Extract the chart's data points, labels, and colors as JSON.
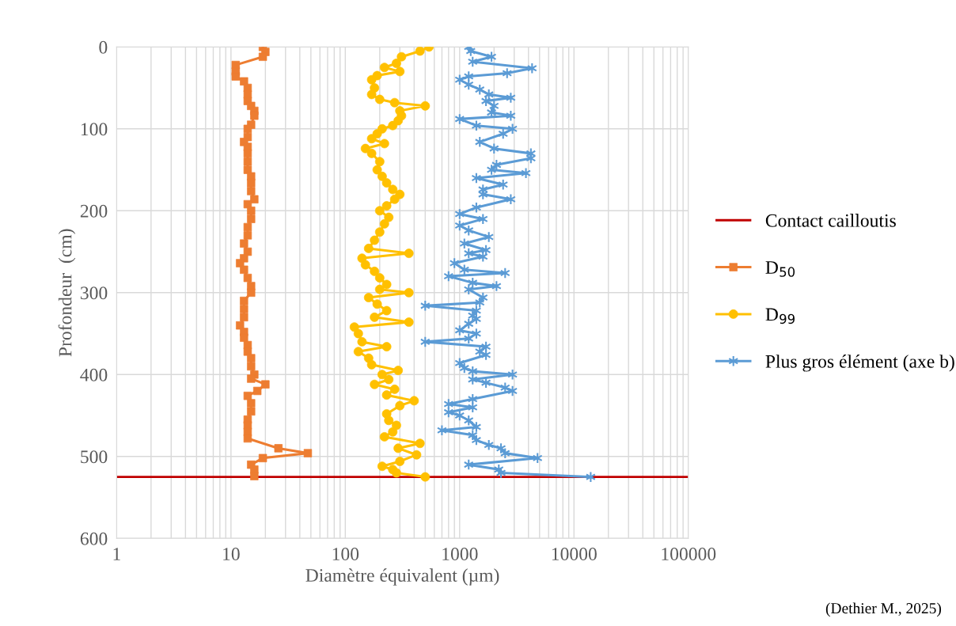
{
  "chart_data": {
    "type": "line",
    "xlabel": "Diamètre équivalent (µm)",
    "ylabel": "Profondeur  (cm)",
    "log": "x",
    "xlim": [
      1,
      100000
    ],
    "xticks": [
      1,
      10,
      100,
      1000,
      10000,
      100000
    ],
    "ylim": [
      600,
      0
    ],
    "yticks": [
      0,
      100,
      200,
      300,
      400,
      500,
      600
    ],
    "grid": true,
    "legend": "right",
    "ref_lines": [
      {
        "axis": "y",
        "value": 525,
        "label": "Contact cailloutis",
        "color": "#c00000"
      }
    ],
    "annotations": [
      "(Dethier M., 2025)"
    ],
    "series": [
      {
        "name": "D$_{50}$",
        "color": "#ed7d31",
        "marker": "square",
        "x": [
          19,
          20,
          19,
          11,
          11,
          11,
          13,
          14,
          14,
          14,
          15,
          16,
          16,
          15,
          14,
          14,
          13,
          14,
          14,
          14,
          14,
          15,
          15,
          15,
          16,
          14,
          15,
          15,
          14,
          14,
          13,
          14,
          13,
          12,
          13,
          14,
          15,
          15,
          13,
          13,
          13,
          12,
          13,
          13,
          14,
          14,
          15,
          15,
          16,
          15,
          20,
          17,
          14,
          15,
          15,
          14,
          14,
          14,
          14,
          26,
          47,
          19,
          15,
          16,
          16
        ],
        "values": [
          0,
          6,
          12,
          22,
          30,
          36,
          42,
          50,
          58,
          66,
          72,
          78,
          84,
          95,
          100,
          110,
          116,
          122,
          130,
          140,
          150,
          158,
          166,
          176,
          186,
          192,
          200,
          210,
          220,
          230,
          240,
          250,
          258,
          264,
          272,
          282,
          292,
          300,
          310,
          320,
          330,
          340,
          348,
          355,
          364,
          372,
          380,
          390,
          400,
          405,
          412,
          420,
          426,
          435,
          445,
          455,
          462,
          470,
          478,
          490,
          496,
          502,
          510,
          516,
          524
        ]
      },
      {
        "name": "D$_{99}$",
        "color": "#ffc000",
        "marker": "circle",
        "x": [
          540,
          450,
          310,
          280,
          220,
          300,
          190,
          170,
          180,
          170,
          200,
          270,
          500,
          300,
          310,
          290,
          260,
          210,
          190,
          170,
          220,
          150,
          170,
          200,
          190,
          210,
          230,
          260,
          300,
          270,
          230,
          200,
          240,
          220,
          200,
          180,
          160,
          360,
          140,
          150,
          180,
          200,
          230,
          200,
          360,
          160,
          190,
          230,
          180,
          360,
          120,
          130,
          140,
          230,
          130,
          160,
          170,
          290,
          210,
          240,
          180,
          270,
          230,
          400,
          300,
          230,
          240,
          280,
          260,
          220,
          450,
          290,
          420,
          300,
          210,
          260,
          280,
          500
        ],
        "values": [
          0,
          5,
          12,
          20,
          25,
          30,
          35,
          40,
          50,
          58,
          64,
          68,
          72,
          78,
          84,
          90,
          96,
          100,
          106,
          112,
          118,
          124,
          130,
          140,
          150,
          158,
          166,
          174,
          180,
          186,
          194,
          200,
          208,
          216,
          226,
          236,
          246,
          252,
          258,
          266,
          274,
          282,
          290,
          296,
          300,
          306,
          314,
          322,
          330,
          336,
          342,
          350,
          360,
          366,
          372,
          380,
          388,
          395,
          400,
          406,
          412,
          418,
          425,
          432,
          438,
          448,
          456,
          462,
          470,
          476,
          484,
          490,
          498,
          506,
          512,
          516,
          520,
          525
        ]
      },
      {
        "name": "Plus gros élément (axe b)",
        "color": "#5b9bd5",
        "marker": "cross",
        "x": [
          1200,
          1250,
          1900,
          1300,
          4300,
          2600,
          1200,
          1000,
          1200,
          1500,
          1800,
          2800,
          1700,
          2000,
          1900,
          2800,
          1000,
          1400,
          2900,
          2400,
          1500,
          2000,
          4200,
          4200,
          2100,
          1900,
          3800,
          1400,
          2400,
          1600,
          1600,
          2800,
          1400,
          1000,
          1600,
          1000,
          1200,
          1800,
          1100,
          1700,
          1200,
          1600,
          900,
          1100,
          2500,
          800,
          1300,
          2100,
          1200,
          1600,
          1500,
          500,
          1400,
          1300,
          1400,
          1200,
          1000,
          1400,
          1200,
          500,
          1700,
          1500,
          1700,
          1000,
          1100,
          1300,
          2900,
          1300,
          1700,
          2500,
          2900,
          1300,
          800,
          1300,
          800,
          1000,
          1200,
          1400,
          700,
          1300,
          1400,
          1800,
          2300,
          2500,
          4800,
          1200,
          2200,
          2300,
          14000
        ],
        "values": [
          0,
          5,
          12,
          18,
          26,
          32,
          36,
          40,
          46,
          52,
          58,
          62,
          66,
          72,
          80,
          84,
          88,
          96,
          100,
          106,
          116,
          124,
          130,
          136,
          144,
          150,
          154,
          160,
          168,
          174,
          180,
          186,
          196,
          204,
          210,
          218,
          224,
          232,
          240,
          248,
          252,
          256,
          264,
          272,
          276,
          280,
          288,
          292,
          296,
          306,
          312,
          316,
          322,
          328,
          332,
          338,
          346,
          350,
          356,
          360,
          366,
          372,
          376,
          386,
          392,
          396,
          400,
          406,
          410,
          416,
          420,
          430,
          436,
          440,
          446,
          450,
          456,
          464,
          468,
          474,
          480,
          486,
          490,
          496,
          502,
          510,
          516,
          520,
          525
        ]
      }
    ]
  }
}
